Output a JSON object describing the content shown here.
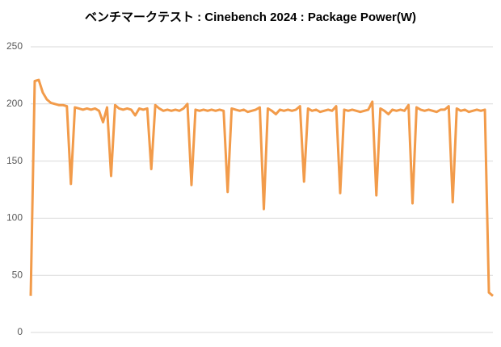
{
  "chart_data": {
    "type": "line",
    "title": "ベンチマークテスト : Cinebench 2024 : Package Power(W)",
    "ylim": [
      0,
      250
    ],
    "yticks": [
      0,
      50,
      100,
      150,
      200,
      250
    ],
    "grid": true,
    "series": [
      {
        "name": "Package Power(W)",
        "color": "#f29b4a",
        "values": [
          32,
          220,
          221,
          210,
          204,
          201,
          200,
          199,
          199,
          198,
          130,
          197,
          196,
          195,
          196,
          195,
          196,
          194,
          184,
          197,
          137,
          199,
          196,
          195,
          196,
          195,
          190,
          196,
          195,
          196,
          143,
          199,
          196,
          194,
          195,
          194,
          195,
          194,
          196,
          200,
          129,
          195,
          194,
          195,
          194,
          195,
          194,
          195,
          194,
          123,
          196,
          195,
          194,
          195,
          193,
          194,
          195,
          197,
          108,
          196,
          194,
          191,
          195,
          194,
          195,
          194,
          195,
          198,
          132,
          196,
          194,
          195,
          193,
          194,
          195,
          194,
          198,
          122,
          195,
          194,
          195,
          194,
          193,
          194,
          195,
          202,
          120,
          196,
          194,
          191,
          195,
          194,
          195,
          194,
          199,
          113,
          197,
          195,
          194,
          195,
          194,
          193,
          195,
          195,
          198,
          114,
          196,
          194,
          195,
          193,
          194,
          195,
          194,
          195,
          35,
          32
        ]
      }
    ]
  }
}
